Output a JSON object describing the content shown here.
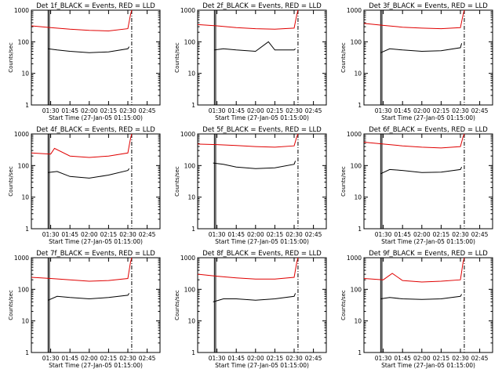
{
  "figure": {
    "title_suffix": "_BLACK = Events, RED = LLD",
    "ylabel": "Counts/sec",
    "xlabel": "Start Time (27-Jan-05 01:15:00)",
    "x_ticks": [
      "01:30",
      "01:45",
      "02:00",
      "02:15",
      "02:30",
      "02:45"
    ],
    "y_ticks": [
      "1",
      "10",
      "100",
      "1000"
    ],
    "colors": {
      "events": "#000000",
      "lld": "#e00000",
      "axes": "#000000",
      "background": "#ffffff"
    }
  },
  "chart_data": [
    {
      "type": "line",
      "title": "Det 1f_BLACK = Events, RED = LLD",
      "xlim": [
        "01:15",
        "02:55"
      ],
      "ylim": [
        1,
        1000
      ],
      "yscale": "log",
      "series": [
        {
          "name": "Events",
          "x": [
            "01:28",
            "01:35",
            "01:45",
            "02:00",
            "02:15",
            "02:30",
            "02:31"
          ],
          "values": [
            60,
            55,
            50,
            45,
            48,
            60,
            70
          ]
        },
        {
          "name": "LLD",
          "x": [
            "01:15",
            "01:30",
            "01:45",
            "02:00",
            "02:15",
            "02:30",
            "02:32",
            "02:33"
          ],
          "values": [
            320,
            280,
            250,
            230,
            220,
            260,
            700,
            1000
          ]
        }
      ]
    },
    {
      "type": "line",
      "title": "Det 2f_BLACK = Events, RED = LLD",
      "xlim": [
        "01:15",
        "02:55"
      ],
      "ylim": [
        1,
        1000
      ],
      "yscale": "log",
      "series": [
        {
          "name": "Events",
          "x": [
            "01:28",
            "01:35",
            "01:45",
            "02:00",
            "02:10",
            "02:15",
            "02:30",
            "02:31"
          ],
          "values": [
            55,
            60,
            55,
            50,
            100,
            55,
            55,
            60
          ]
        },
        {
          "name": "LLD",
          "x": [
            "01:15",
            "01:30",
            "01:45",
            "02:00",
            "02:15",
            "02:30",
            "02:32",
            "02:33"
          ],
          "values": [
            350,
            320,
            280,
            260,
            250,
            270,
            700,
            1000
          ]
        }
      ]
    },
    {
      "type": "line",
      "title": "Det 3f_BLACK = Events, RED = LLD",
      "xlim": [
        "01:15",
        "02:55"
      ],
      "ylim": [
        1,
        1000
      ],
      "yscale": "log",
      "series": [
        {
          "name": "Events",
          "x": [
            "01:28",
            "01:35",
            "01:45",
            "02:00",
            "02:15",
            "02:30",
            "02:31"
          ],
          "values": [
            45,
            60,
            55,
            50,
            52,
            65,
            90
          ]
        },
        {
          "name": "LLD",
          "x": [
            "01:15",
            "01:30",
            "01:45",
            "02:00",
            "02:15",
            "02:30",
            "02:32",
            "02:33"
          ],
          "values": [
            380,
            330,
            290,
            270,
            260,
            280,
            700,
            1000
          ]
        }
      ]
    },
    {
      "type": "line",
      "title": "Det 4f_BLACK = Events, RED = LLD",
      "xlim": [
        "01:15",
        "02:55"
      ],
      "ylim": [
        1,
        1000
      ],
      "yscale": "log",
      "series": [
        {
          "name": "Events",
          "x": [
            "01:28",
            "01:35",
            "01:45",
            "02:00",
            "02:15",
            "02:30",
            "02:31"
          ],
          "values": [
            60,
            65,
            45,
            40,
            50,
            70,
            80
          ]
        },
        {
          "name": "LLD",
          "x": [
            "01:15",
            "01:30",
            "01:33",
            "01:45",
            "02:00",
            "02:15",
            "02:30",
            "02:32",
            "02:33"
          ],
          "values": [
            250,
            230,
            350,
            200,
            180,
            200,
            250,
            700,
            1000
          ]
        }
      ]
    },
    {
      "type": "line",
      "title": "Det 5f_BLACK = Events, RED = LLD",
      "xlim": [
        "01:15",
        "02:55"
      ],
      "ylim": [
        1,
        1000
      ],
      "yscale": "log",
      "series": [
        {
          "name": "Events",
          "x": [
            "01:27",
            "01:35",
            "01:45",
            "02:00",
            "02:15",
            "02:30",
            "02:31"
          ],
          "values": [
            120,
            110,
            90,
            80,
            85,
            110,
            140
          ]
        },
        {
          "name": "LLD",
          "x": [
            "01:15",
            "01:30",
            "01:45",
            "02:00",
            "02:15",
            "02:30",
            "02:32",
            "02:33"
          ],
          "values": [
            480,
            460,
            430,
            400,
            380,
            420,
            800,
            1000
          ]
        }
      ]
    },
    {
      "type": "line",
      "title": "Det 6f_BLACK = Events, RED = LLD",
      "xlim": [
        "01:15",
        "02:55"
      ],
      "ylim": [
        1,
        1000
      ],
      "yscale": "log",
      "series": [
        {
          "name": "Events",
          "x": [
            "01:28",
            "01:35",
            "01:45",
            "02:00",
            "02:15",
            "02:30",
            "02:31"
          ],
          "values": [
            55,
            75,
            70,
            60,
            62,
            75,
            90
          ]
        },
        {
          "name": "LLD",
          "x": [
            "01:15",
            "01:30",
            "01:45",
            "02:00",
            "02:15",
            "02:30",
            "02:32",
            "02:33"
          ],
          "values": [
            550,
            480,
            420,
            380,
            360,
            400,
            800,
            1000
          ]
        }
      ]
    },
    {
      "type": "line",
      "title": "Det 7f_BLACK = Events, RED = LLD",
      "xlim": [
        "01:15",
        "02:55"
      ],
      "ylim": [
        1,
        1000
      ],
      "yscale": "log",
      "series": [
        {
          "name": "Events",
          "x": [
            "01:28",
            "01:35",
            "01:45",
            "02:00",
            "02:15",
            "02:30",
            "02:31"
          ],
          "values": [
            45,
            60,
            55,
            50,
            55,
            65,
            75
          ]
        },
        {
          "name": "LLD",
          "x": [
            "01:15",
            "01:30",
            "01:45",
            "02:00",
            "02:15",
            "02:30",
            "02:32",
            "02:33"
          ],
          "values": [
            240,
            220,
            200,
            180,
            190,
            220,
            700,
            1000
          ]
        }
      ]
    },
    {
      "type": "line",
      "title": "Det 8f_BLACK = Events, RED = LLD",
      "xlim": [
        "01:15",
        "02:55"
      ],
      "ylim": [
        1,
        1000
      ],
      "yscale": "log",
      "series": [
        {
          "name": "Events",
          "x": [
            "01:27",
            "01:35",
            "01:45",
            "02:00",
            "02:15",
            "02:30",
            "02:31"
          ],
          "values": [
            40,
            50,
            50,
            45,
            50,
            60,
            75
          ]
        },
        {
          "name": "LLD",
          "x": [
            "01:15",
            "01:30",
            "01:45",
            "02:00",
            "02:15",
            "02:30",
            "02:32",
            "02:33"
          ],
          "values": [
            300,
            260,
            230,
            210,
            210,
            240,
            700,
            1000
          ]
        }
      ]
    },
    {
      "type": "line",
      "title": "Det 9f_BLACK = Events, RED = LLD",
      "xlim": [
        "01:15",
        "02:55"
      ],
      "ylim": [
        1,
        1000
      ],
      "yscale": "log",
      "series": [
        {
          "name": "Events",
          "x": [
            "01:28",
            "01:35",
            "01:45",
            "02:00",
            "02:15",
            "02:30",
            "02:31"
          ],
          "values": [
            50,
            55,
            50,
            48,
            50,
            60,
            70
          ]
        },
        {
          "name": "LLD",
          "x": [
            "01:15",
            "01:30",
            "01:37",
            "01:45",
            "02:00",
            "02:15",
            "02:30",
            "02:32",
            "02:33"
          ],
          "values": [
            220,
            200,
            320,
            190,
            170,
            180,
            200,
            700,
            1000
          ]
        }
      ]
    }
  ]
}
